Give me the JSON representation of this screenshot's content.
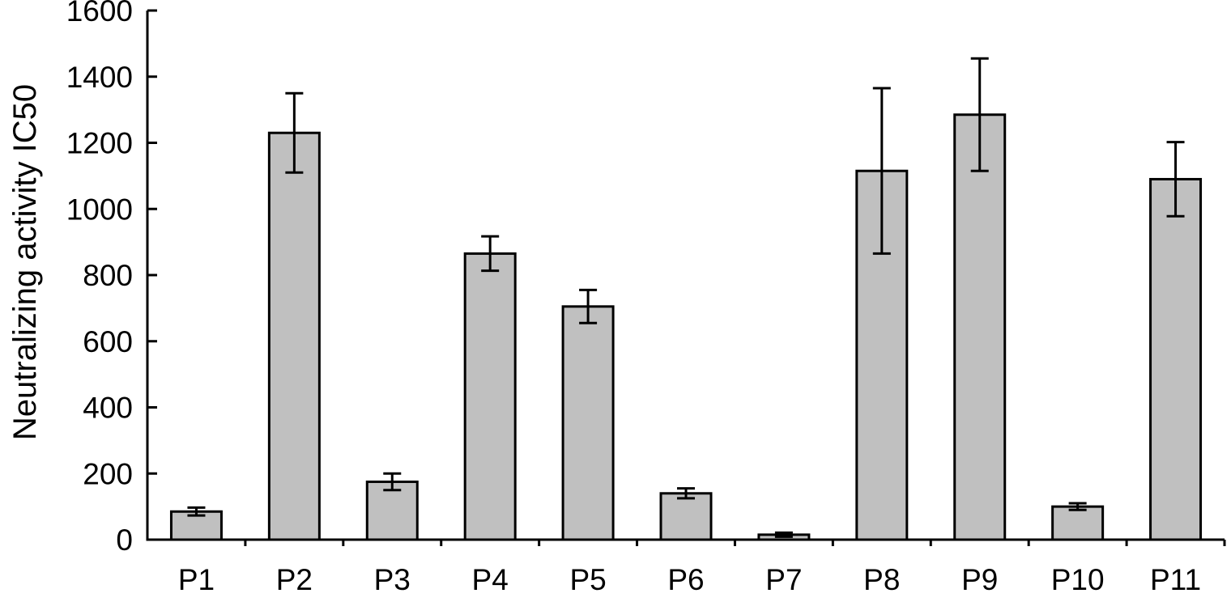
{
  "chart_data": {
    "type": "bar",
    "title": "",
    "xlabel": "",
    "ylabel": "Neutralizing activity IC50",
    "ylim": [
      0,
      1600
    ],
    "yticks": [
      0,
      200,
      400,
      600,
      800,
      1000,
      1200,
      1400,
      1600
    ],
    "ytick_labels": [
      "0",
      "200",
      "400",
      "600",
      "800",
      "1000",
      "1200",
      "1400",
      "1600"
    ],
    "categories": [
      "P1",
      "P2",
      "P3",
      "P4",
      "P5",
      "P6",
      "P7",
      "P8",
      "P9",
      "P10",
      "P11"
    ],
    "values": [
      85,
      1230,
      175,
      865,
      705,
      140,
      15,
      1115,
      1285,
      100,
      1090
    ],
    "errors": [
      12,
      120,
      25,
      52,
      50,
      15,
      6,
      250,
      170,
      10,
      112
    ],
    "grid": false,
    "legend": "none",
    "colors": {
      "bar_fill": "#c0c0c0",
      "bar_stroke": "#000000",
      "axis": "#000000",
      "error_bar": "#000000"
    }
  }
}
